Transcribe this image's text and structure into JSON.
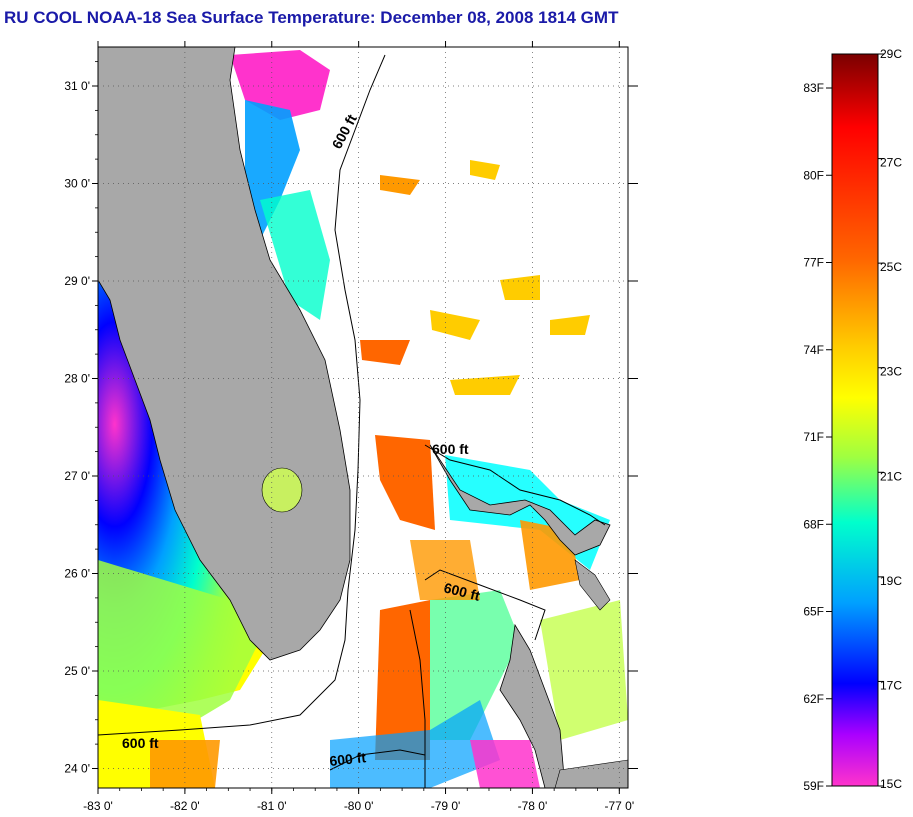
{
  "title": "RU COOL  NOAA-18  Sea Surface Temperature:  December 08, 2008 1814 GMT",
  "map": {
    "lon_range": [
      -83,
      -76.9
    ],
    "lat_range": [
      23.8,
      31.4
    ],
    "lon_ticks": [
      "-83 0'",
      "-82 0'",
      "-81 0'",
      "-80 0'",
      "-79 0'",
      "-78 0'",
      "-77 0'"
    ],
    "lat_ticks": [
      "31 0'",
      "30 0'",
      "29 0'",
      "28 0'",
      "27 0'",
      "26 0'",
      "25 0'",
      "24 0'"
    ],
    "grid": "dotted",
    "land_color": "#a8a8a8",
    "cloud_color": "#ffffff",
    "contour_labels": [
      "600 ft",
      "600 ft",
      "600 ft",
      "600 ft",
      "600 ft"
    ]
  },
  "colorbar": {
    "fahrenheit_labels": [
      "83F",
      "80F",
      "77F",
      "74F",
      "71F",
      "68F",
      "65F",
      "62F",
      "59F"
    ],
    "celsius_labels": [
      "29C",
      "27C",
      "25C",
      "23C",
      "21C",
      "19C",
      "17C",
      "15C"
    ],
    "colors": [
      "#7a0000",
      "#ff0000",
      "#ff6600",
      "#ffcc00",
      "#ffff00",
      "#a0ff40",
      "#00ffcc",
      "#00a0ff",
      "#0000ff",
      "#aa00ff",
      "#ff33cc"
    ]
  }
}
